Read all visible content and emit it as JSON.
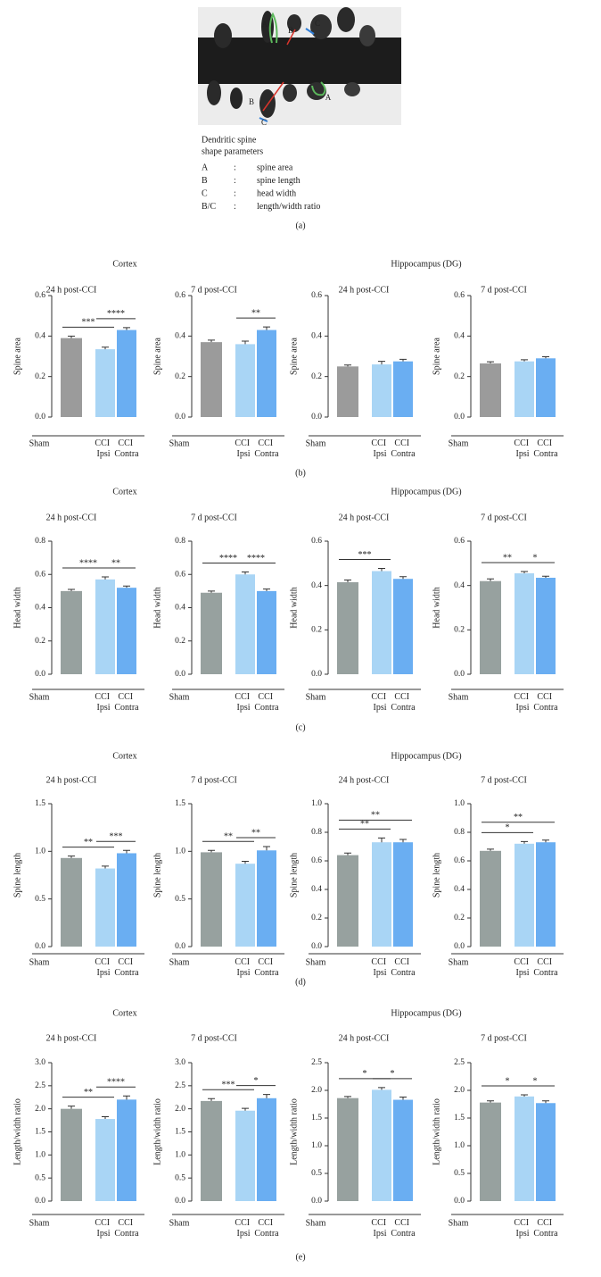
{
  "panel_a": {
    "image_labels": [
      "A",
      "B",
      "C",
      "B",
      "C",
      "A"
    ],
    "caption": [
      "Dendritic spine",
      "shape parameters"
    ],
    "legend": [
      [
        "A",
        ":",
        "spine area"
      ],
      [
        "B",
        ":",
        "spine length"
      ],
      [
        "C",
        ":",
        "head width"
      ],
      [
        "B/C",
        ":",
        "length/width ratio"
      ]
    ],
    "label": "(a)"
  },
  "panels": [
    {
      "left_heading": "Cortex",
      "right_heading": "Hippocampus (DG)",
      "label": "(b)"
    },
    {
      "left_heading": "Cortex",
      "right_heading": "Hippocampus (DG)",
      "label": "(c)"
    },
    {
      "left_heading": "Cortex",
      "right_heading": "Hippocampus (DG)",
      "label": "(d)"
    },
    {
      "left_heading": "Cortex",
      "right_heading": "Hippocampus (DG)",
      "label": "(e)"
    }
  ],
  "chart_data": [
    {
      "type": "bar",
      "title": "24 h post-CCI",
      "ylabel": "Spine area",
      "categories": [
        "Sham",
        "CCI Ipsi",
        "CCI Contra"
      ],
      "colors": [
        "#9b9b9b",
        "#a9d5f5",
        "#6aaef2"
      ],
      "values": [
        0.39,
        0.335,
        0.43
      ],
      "errors": [
        0.01,
        0.01,
        0.012
      ],
      "ylim": [
        0,
        0.6
      ],
      "yticks": [
        {
          "value": 0,
          "label": "0.0"
        },
        0.2,
        0.4,
        0.6
      ],
      "annotations": [
        {
          "between": [
            0,
            1
          ],
          "label": "***"
        },
        {
          "between": [
            1,
            2
          ],
          "label": "****"
        }
      ]
    },
    {
      "type": "bar",
      "title": "7 d post-CCI",
      "ylabel": "Spine area",
      "categories": [
        "Sham",
        "CCI Ipsi",
        "CCI Contra"
      ],
      "colors": [
        "#9b9b9b",
        "#a9d5f5",
        "#6aaef2"
      ],
      "values": [
        0.37,
        0.36,
        0.43
      ],
      "errors": [
        0.01,
        0.015,
        0.015
      ],
      "ylim": [
        0,
        0.6
      ],
      "yticks": [
        {
          "value": 0,
          "label": "0.0"
        },
        0.2,
        0.4,
        0.6
      ],
      "annotations": [
        {
          "between": [
            1,
            2
          ],
          "label": "**"
        }
      ]
    },
    {
      "type": "bar",
      "title": "24 h post-CCI",
      "ylabel": "Spine area",
      "categories": [
        "Sham",
        "CCI Ipsi",
        "CCI Contra"
      ],
      "colors": [
        "#9b9b9b",
        "#a9d5f5",
        "#6aaef2"
      ],
      "values": [
        0.25,
        0.26,
        0.275
      ],
      "errors": [
        0.007,
        0.015,
        0.01
      ],
      "ylim": [
        0,
        0.6
      ],
      "yticks": [
        {
          "value": 0,
          "label": "0.0"
        },
        0.2,
        0.4,
        0.6
      ],
      "annotations": []
    },
    {
      "type": "bar",
      "title": "7 d post-CCI",
      "ylabel": "Spine area",
      "categories": [
        "Sham",
        "CCI Ipsi",
        "CCI Contra"
      ],
      "colors": [
        "#9b9b9b",
        "#a9d5f5",
        "#6aaef2"
      ],
      "values": [
        0.265,
        0.275,
        0.29
      ],
      "errors": [
        0.008,
        0.008,
        0.008
      ],
      "ylim": [
        0,
        0.6
      ],
      "yticks": [
        {
          "value": 0,
          "label": "0.0"
        },
        0.2,
        0.4,
        0.6
      ],
      "annotations": []
    },
    {
      "type": "bar",
      "title": "24 h post-CCI",
      "ylabel": "Head width",
      "categories": [
        "Sham",
        "CCI Ipsi",
        "CCI Contra"
      ],
      "colors": [
        "#97a19f",
        "#a9d5f5",
        "#6aaef2"
      ],
      "values": [
        0.5,
        0.57,
        0.52
      ],
      "errors": [
        0.01,
        0.015,
        0.01
      ],
      "ylim": [
        0,
        0.8
      ],
      "yticks": [
        {
          "value": 0,
          "label": "0.0"
        },
        0.2,
        0.4,
        0.6,
        0.8
      ],
      "annotations": [
        {
          "between": [
            0,
            1
          ],
          "label": "****"
        },
        {
          "between": [
            1,
            2
          ],
          "label": "**"
        }
      ]
    },
    {
      "type": "bar",
      "title": "7 d post-CCI",
      "ylabel": "Head width",
      "categories": [
        "Sham",
        "CCI Ipsi",
        "CCI Contra"
      ],
      "colors": [
        "#97a19f",
        "#a9d5f5",
        "#6aaef2"
      ],
      "values": [
        0.49,
        0.6,
        0.5
      ],
      "errors": [
        0.01,
        0.015,
        0.012
      ],
      "ylim": [
        0,
        0.8
      ],
      "yticks": [
        {
          "value": 0,
          "label": "0.0"
        },
        0.2,
        0.4,
        0.6,
        0.8
      ],
      "annotations": [
        {
          "between": [
            0,
            1
          ],
          "label": "****"
        },
        {
          "between": [
            1,
            2
          ],
          "label": "****"
        }
      ]
    },
    {
      "type": "bar",
      "title": "24 h post-CCI",
      "ylabel": "Head width",
      "categories": [
        "Sham",
        "CCI Ipsi",
        "CCI Contra"
      ],
      "colors": [
        "#97a19f",
        "#a9d5f5",
        "#6aaef2"
      ],
      "values": [
        0.415,
        0.465,
        0.43
      ],
      "errors": [
        0.01,
        0.012,
        0.01
      ],
      "ylim": [
        0,
        0.6
      ],
      "yticks": [
        {
          "value": 0,
          "label": "0.0"
        },
        0.2,
        0.4,
        0.6
      ],
      "annotations": [
        {
          "between": [
            0,
            1
          ],
          "label": "***"
        }
      ]
    },
    {
      "type": "bar",
      "title": "7 d post-CCI",
      "ylabel": "Head width",
      "categories": [
        "Sham",
        "CCI Ipsi",
        "CCI Contra"
      ],
      "colors": [
        "#97a19f",
        "#a9d5f5",
        "#6aaef2"
      ],
      "values": [
        0.42,
        0.455,
        0.435
      ],
      "errors": [
        0.01,
        0.008,
        0.007
      ],
      "ylim": [
        0,
        0.6
      ],
      "yticks": [
        {
          "value": 0,
          "label": "0.0"
        },
        0.2,
        0.4,
        0.6
      ],
      "annotations": [
        {
          "between": [
            0,
            1
          ],
          "label": "**"
        },
        {
          "between": [
            1,
            2
          ],
          "label": "*"
        }
      ]
    },
    {
      "type": "bar",
      "title": "24 h post-CCI",
      "ylabel": "Spine length",
      "categories": [
        "Sham",
        "CCI Ipsi",
        "CCI Contra"
      ],
      "colors": [
        "#97a19f",
        "#a9d5f5",
        "#6aaef2"
      ],
      "values": [
        0.93,
        0.82,
        0.98
      ],
      "errors": [
        0.02,
        0.025,
        0.03
      ],
      "ylim": [
        0,
        1.5
      ],
      "yticks": [
        {
          "value": 0,
          "label": "0.0"
        },
        0.5,
        {
          "value": 1,
          "label": "1.0"
        },
        1.5
      ],
      "annotations": [
        {
          "between": [
            0,
            1
          ],
          "label": "**"
        },
        {
          "between": [
            1,
            2
          ],
          "label": "***"
        }
      ]
    },
    {
      "type": "bar",
      "title": "7 d post-CCI",
      "ylabel": "Spine length",
      "categories": [
        "Sham",
        "CCI Ipsi",
        "CCI Contra"
      ],
      "colors": [
        "#97a19f",
        "#a9d5f5",
        "#6aaef2"
      ],
      "values": [
        0.99,
        0.87,
        1.01
      ],
      "errors": [
        0.02,
        0.025,
        0.04
      ],
      "ylim": [
        0,
        1.5
      ],
      "yticks": [
        {
          "value": 0,
          "label": "0.0"
        },
        0.5,
        {
          "value": 1,
          "label": "1.0"
        },
        1.5
      ],
      "annotations": [
        {
          "between": [
            0,
            1
          ],
          "label": "**"
        },
        {
          "between": [
            1,
            2
          ],
          "label": "**"
        }
      ]
    },
    {
      "type": "bar",
      "title": "24 h post-CCI",
      "ylabel": "Spine length",
      "categories": [
        "Sham",
        "CCI Ipsi",
        "CCI Contra"
      ],
      "colors": [
        "#97a19f",
        "#a9d5f5",
        "#6aaef2"
      ],
      "values": [
        0.64,
        0.73,
        0.73
      ],
      "errors": [
        0.015,
        0.03,
        0.02
      ],
      "ylim": [
        0,
        1
      ],
      "yticks": [
        {
          "value": 0,
          "label": "0.0"
        },
        0.2,
        0.4,
        0.6,
        0.8,
        {
          "value": 1,
          "label": "1.0"
        }
      ],
      "annotations": [
        {
          "between": [
            0,
            1
          ],
          "label": "**"
        },
        {
          "between": [
            0,
            2
          ],
          "label": "**"
        }
      ]
    },
    {
      "type": "bar",
      "title": "7 d post-CCI",
      "ylabel": "Spine length",
      "categories": [
        "Sham",
        "CCI Ipsi",
        "CCI Contra"
      ],
      "colors": [
        "#97a19f",
        "#a9d5f5",
        "#6aaef2"
      ],
      "values": [
        0.67,
        0.72,
        0.73
      ],
      "errors": [
        0.012,
        0.015,
        0.015
      ],
      "ylim": [
        0,
        1
      ],
      "yticks": [
        {
          "value": 0,
          "label": "0.0"
        },
        0.2,
        0.4,
        0.6,
        0.8,
        {
          "value": 1,
          "label": "1.0"
        }
      ],
      "annotations": [
        {
          "between": [
            0,
            1
          ],
          "label": "*"
        },
        {
          "between": [
            0,
            2
          ],
          "label": "**"
        }
      ]
    },
    {
      "type": "bar",
      "title": "24 h post-CCI",
      "ylabel": "Length/width ratio",
      "categories": [
        "Sham",
        "CCI Ipsi",
        "CCI Contra"
      ],
      "colors": [
        "#97a19f",
        "#a9d5f5",
        "#6aaef2"
      ],
      "values": [
        2.0,
        1.78,
        2.2
      ],
      "errors": [
        0.06,
        0.05,
        0.08
      ],
      "ylim": [
        0,
        3
      ],
      "yticks": [
        {
          "value": 0,
          "label": "0.0"
        },
        0.5,
        {
          "value": 1,
          "label": "1.0"
        },
        1.5,
        {
          "value": 2,
          "label": "2.0"
        },
        2.5,
        {
          "value": 3,
          "label": "3.0"
        }
      ],
      "annotations": [
        {
          "between": [
            0,
            1
          ],
          "label": "**"
        },
        {
          "between": [
            1,
            2
          ],
          "label": "****"
        }
      ]
    },
    {
      "type": "bar",
      "title": "7 d post-CCI",
      "ylabel": "Length/width ratio",
      "categories": [
        "Sham",
        "CCI Ipsi",
        "CCI Contra"
      ],
      "colors": [
        "#97a19f",
        "#a9d5f5",
        "#6aaef2"
      ],
      "values": [
        2.17,
        1.96,
        2.23
      ],
      "errors": [
        0.05,
        0.05,
        0.08
      ],
      "ylim": [
        0,
        3
      ],
      "yticks": [
        {
          "value": 0,
          "label": "0.0"
        },
        0.5,
        {
          "value": 1,
          "label": "1.0"
        },
        1.5,
        {
          "value": 2,
          "label": "2.0"
        },
        2.5,
        {
          "value": 3,
          "label": "3.0"
        }
      ],
      "annotations": [
        {
          "between": [
            0,
            1
          ],
          "label": "***"
        },
        {
          "between": [
            1,
            2
          ],
          "label": "*"
        }
      ]
    },
    {
      "type": "bar",
      "title": "24 h post-CCI",
      "ylabel": "Length/width ratio",
      "categories": [
        "Sham",
        "CCI Ipsi",
        "CCI Contra"
      ],
      "colors": [
        "#97a19f",
        "#a9d5f5",
        "#6aaef2"
      ],
      "values": [
        1.86,
        2.01,
        1.83
      ],
      "errors": [
        0.03,
        0.04,
        0.05
      ],
      "ylim": [
        0,
        2.5
      ],
      "yticks": [
        {
          "value": 0,
          "label": "0.0"
        },
        0.5,
        {
          "value": 1,
          "label": "1.0"
        },
        1.5,
        {
          "value": 2,
          "label": "2.0"
        },
        2.5
      ],
      "annotations": [
        {
          "between": [
            0,
            1
          ],
          "label": "*"
        },
        {
          "between": [
            1,
            2
          ],
          "label": "*"
        }
      ]
    },
    {
      "type": "bar",
      "title": "7 d post-CCI",
      "ylabel": "Length/width ratio",
      "categories": [
        "Sham",
        "CCI Ipsi",
        "CCI Contra"
      ],
      "colors": [
        "#97a19f",
        "#a9d5f5",
        "#6aaef2"
      ],
      "values": [
        1.78,
        1.89,
        1.77
      ],
      "errors": [
        0.03,
        0.03,
        0.04
      ],
      "ylim": [
        0,
        2.5
      ],
      "yticks": [
        {
          "value": 0,
          "label": "0.0"
        },
        0.5,
        {
          "value": 1,
          "label": "1.0"
        },
        1.5,
        {
          "value": 2,
          "label": "2.0"
        },
        2.5
      ],
      "annotations": [
        {
          "between": [
            0,
            1
          ],
          "label": "*"
        },
        {
          "between": [
            1,
            2
          ],
          "label": "*"
        }
      ]
    }
  ]
}
